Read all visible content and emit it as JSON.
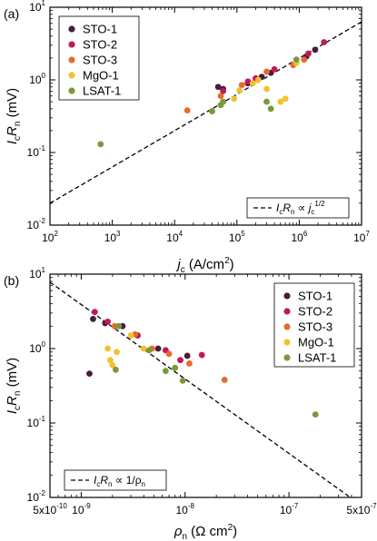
{
  "chart_data": [
    {
      "type": "scatter",
      "panel_label": "(a)",
      "xscale": "log",
      "yscale": "log",
      "xlim": [
        100,
        10000000
      ],
      "ylim": [
        0.01,
        10
      ],
      "xticks": [
        {
          "v": 100,
          "b": "10",
          "e": "2"
        },
        {
          "v": 1000,
          "b": "10",
          "e": "3"
        },
        {
          "v": 10000,
          "b": "10",
          "e": "4"
        },
        {
          "v": 100000,
          "b": "10",
          "e": "5"
        },
        {
          "v": 1000000,
          "b": "10",
          "e": "6"
        },
        {
          "v": 10000000,
          "b": "10",
          "e": "7"
        }
      ],
      "yticks": [
        {
          "v": 0.01,
          "b": "10",
          "e": "-2"
        },
        {
          "v": 0.1,
          "b": "10",
          "e": "-1"
        },
        {
          "v": 1,
          "b": "10",
          "e": "0"
        },
        {
          "v": 10,
          "b": "10",
          "e": "1"
        }
      ],
      "xlabel": {
        "main": "j",
        "sub": "c",
        "unit_pre": " (A/cm",
        "unit_sup": "2",
        "unit_post": ")"
      },
      "ylabel": {
        "i": "I",
        "isub": "c",
        "r": "R",
        "rsub": "n",
        "unit": " (mV)"
      },
      "legend_position": "top-left",
      "series": [
        {
          "name": "STO-1",
          "color": "#4a1a3c",
          "points": [
            [
              50000,
              0.8
            ],
            [
              60000,
              0.75
            ],
            [
              150000,
              0.9
            ],
            [
              250000,
              1.1
            ],
            [
              350000,
              1.25
            ],
            [
              1300000,
              2.1
            ],
            [
              1800000,
              2.6
            ]
          ]
        },
        {
          "name": "STO-2",
          "color": "#c2185b",
          "points": [
            [
              60000,
              0.7
            ],
            [
              150000,
              0.95
            ],
            [
              200000,
              1.05
            ],
            [
              400000,
              1.4
            ],
            [
              1400000,
              2.3
            ],
            [
              2500000,
              3.3
            ]
          ]
        },
        {
          "name": "STO-3",
          "color": "#e36c2c",
          "points": [
            [
              16000,
              0.38
            ],
            [
              55000,
              0.6
            ],
            [
              120000,
              0.85
            ],
            [
              300000,
              1.3
            ],
            [
              800000,
              1.6
            ],
            [
              1200000,
              1.9
            ]
          ]
        },
        {
          "name": "MgO-1",
          "color": "#f2c12e",
          "points": [
            [
              90000,
              0.55
            ],
            [
              110000,
              0.72
            ],
            [
              180000,
              0.9
            ],
            [
              220000,
              1.0
            ],
            [
              300000,
              0.75
            ],
            [
              500000,
              0.5
            ],
            [
              600000,
              0.55
            ],
            [
              900000,
              1.7
            ]
          ]
        },
        {
          "name": "LSAT-1",
          "color": "#7a9a3a",
          "points": [
            [
              650,
              0.13
            ],
            [
              40000,
              0.37
            ],
            [
              55000,
              0.45
            ],
            [
              60000,
              0.5
            ],
            [
              300000,
              0.5
            ],
            [
              350000,
              0.4
            ],
            [
              900000,
              1.9
            ]
          ]
        }
      ],
      "fit": {
        "label_i": "I",
        "label_isub": "c",
        "label_r": "R",
        "label_rsub": "n",
        "label_rel": " ∝ ",
        "label_j": "j",
        "label_jsub": "c",
        "label_jsup": "1/2",
        "line": [
          [
            100,
            0.02
          ],
          [
            10000000,
            6.3
          ]
        ]
      }
    },
    {
      "type": "scatter",
      "panel_label": "(b)",
      "xscale": "log",
      "yscale": "log",
      "xlim": [
        5e-10,
        5e-07
      ],
      "ylim": [
        0.01,
        10
      ],
      "xticks": [
        {
          "v": 5e-10,
          "b": "5x10",
          "e": "-10"
        },
        {
          "v": 1e-09,
          "b": "10",
          "e": "-9"
        },
        {
          "v": 1e-08,
          "b": "10",
          "e": "-8"
        },
        {
          "v": 1e-07,
          "b": "10",
          "e": "-7"
        },
        {
          "v": 5e-07,
          "b": "5x10",
          "e": "-7"
        }
      ],
      "yticks": [
        {
          "v": 0.01,
          "b": "10",
          "e": "-2"
        },
        {
          "v": 0.1,
          "b": "10",
          "e": "-1"
        },
        {
          "v": 1,
          "b": "10",
          "e": "0"
        },
        {
          "v": 10,
          "b": "10",
          "e": "1"
        }
      ],
      "xlabel": {
        "main": "ρ",
        "sub": "n",
        "unit_pre": " (Ω cm",
        "unit_sup": "2",
        "unit_post": ")"
      },
      "ylabel": {
        "i": "I",
        "isub": "c",
        "r": "R",
        "rsub": "n",
        "unit": " (mV)"
      },
      "legend_position": "top-right",
      "series": [
        {
          "name": "STO-1",
          "color": "#4a1a3c",
          "points": [
            [
              1.2e-09,
              0.46
            ],
            [
              1.3e-09,
              2.5
            ],
            [
              1.7e-09,
              2.2
            ],
            [
              2.5e-09,
              2.0
            ],
            [
              5.5e-09,
              1.0
            ],
            [
              1.05e-08,
              0.8
            ]
          ]
        },
        {
          "name": "STO-2",
          "color": "#c2185b",
          "points": [
            [
              1.35e-09,
              3.1
            ],
            [
              1.8e-09,
              2.3
            ],
            [
              3.5e-09,
              1.5
            ],
            [
              6.5e-09,
              0.95
            ],
            [
              9e-09,
              0.7
            ],
            [
              1.45e-08,
              0.82
            ]
          ]
        },
        {
          "name": "STO-3",
          "color": "#e36c2c",
          "points": [
            [
              2.1e-09,
              2.0
            ],
            [
              3.3e-09,
              1.55
            ],
            [
              4.8e-09,
              1.0
            ],
            [
              7e-09,
              0.85
            ],
            [
              1.1e-08,
              0.63
            ],
            [
              2.4e-08,
              0.38
            ]
          ]
        },
        {
          "name": "MgO-1",
          "color": "#f2c12e",
          "points": [
            [
              1.8e-09,
              1.0
            ],
            [
              1.9e-09,
              0.7
            ],
            [
              2e-09,
              0.6
            ],
            [
              2.2e-09,
              0.9
            ],
            [
              3e-09,
              1.5
            ],
            [
              4e-09,
              1.0
            ],
            [
              8e-09,
              0.55
            ]
          ]
        },
        {
          "name": "LSAT-1",
          "color": "#7a9a3a",
          "points": [
            [
              2.15e-09,
              0.52
            ],
            [
              2.3e-09,
              2.0
            ],
            [
              4.5e-09,
              0.95
            ],
            [
              6.5e-09,
              0.5
            ],
            [
              8e-09,
              0.55
            ],
            [
              9.5e-09,
              0.37
            ],
            [
              1.8e-07,
              0.13
            ]
          ]
        }
      ],
      "fit": {
        "label_i": "I",
        "label_isub": "c",
        "label_r": "R",
        "label_rsub": "n",
        "label_rel": " ∝ 1/",
        "label_rho": "ρ",
        "label_rhosub": "n",
        "line": [
          [
            5e-10,
            7.8
          ],
          [
            5e-07,
            0.0078
          ]
        ]
      }
    }
  ]
}
